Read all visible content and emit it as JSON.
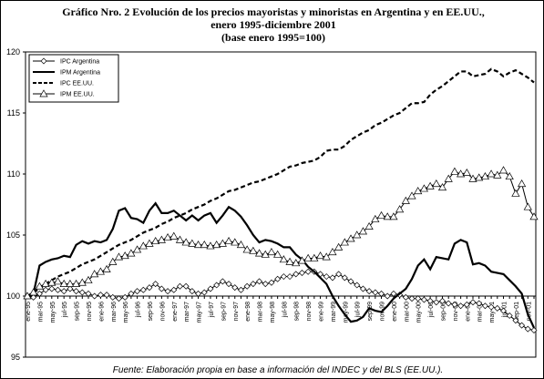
{
  "chart_data": {
    "type": "line",
    "title": [
      "Gráfico Nro. 2 Evolución de los precios mayoristas y minoristas en Argentina y en EE.UU.,",
      "enero 1995-diciembre 2001",
      "(base enero 1995=100)"
    ],
    "footnote": "Fuente: Elaboración propia en base a información del INDEC y del BLS (EE.UU.).",
    "categories": [
      "ene-95",
      null,
      "mar-95",
      null,
      "may-95",
      null,
      "jul-95",
      null,
      "sep-95",
      null,
      "nov-95",
      null,
      "ene-96",
      null,
      "mar-96",
      null,
      "may-96",
      null,
      "jul-96",
      null,
      "sep-96",
      null,
      "nov-96",
      null,
      "ene-97",
      null,
      "mar-97",
      null,
      "may-97",
      null,
      "jul-97",
      null,
      "sep-97",
      null,
      "nov-97",
      null,
      "ene-98",
      null,
      "mar-98",
      null,
      "may-98",
      null,
      "jul-98",
      null,
      "sep-98",
      null,
      "nov-98",
      null,
      "ene-99",
      null,
      "mar-99",
      null,
      "may-99",
      null,
      "jul-99",
      null,
      "sep-99",
      null,
      "nov-99",
      null,
      "ene-00",
      null,
      "mar-00",
      null,
      "may-00",
      null,
      "jul-00",
      null,
      "sep-00",
      null,
      "nov-00",
      null,
      "ene-01",
      null,
      "mar-01",
      null,
      "may-01",
      null,
      "jul-01",
      null,
      "sep-01",
      null,
      "nov-01",
      null
    ],
    "ylim": [
      95,
      120
    ],
    "yticks": [
      95,
      100,
      105,
      110,
      115,
      120
    ],
    "axis_crossing": 100,
    "legend": "upper left",
    "series": [
      {
        "name": "IPC Argentina",
        "color": "#000000",
        "dash": false,
        "marker": "diamond",
        "values": [
          100,
          99.9,
          100.2,
          100.5,
          100.6,
          100.5,
          100.4,
          100.6,
          100.4,
          100.3,
          100.2,
          100.0,
          100.1,
          100.1,
          99.9,
          99.8,
          99.9,
          100.2,
          100.4,
          100.5,
          100.7,
          101.0,
          100.6,
          100.4,
          100.5,
          100.8,
          100.8,
          100.4,
          100.2,
          100.3,
          100.6,
          100.9,
          101.2,
          101.0,
          100.7,
          100.5,
          100.8,
          101.0,
          101.2,
          101.0,
          101.1,
          101.4,
          101.6,
          101.6,
          101.8,
          101.9,
          102.0,
          102.0,
          101.8,
          101.6,
          101.5,
          101.8,
          101.5,
          101.2,
          100.9,
          100.6,
          100.4,
          100.3,
          100.2,
          100.0,
          100.2,
          100.1,
          99.9,
          99.8,
          99.8,
          99.7,
          99.6,
          99.5,
          99.6,
          99.4,
          99.3,
          99.2,
          99.3,
          99.5,
          99.4,
          99.2,
          99.1,
          99.0,
          98.8,
          98.4,
          98.0,
          97.6,
          97.3,
          97.2
        ]
      },
      {
        "name": "IPM Argentina",
        "color": "#000000",
        "dash": false,
        "marker": null,
        "values": [
          100,
          100.2,
          102.5,
          102.8,
          103.0,
          103.1,
          103.3,
          103.2,
          104.2,
          104.5,
          104.3,
          104.5,
          104.4,
          104.6,
          105.5,
          107.0,
          107.2,
          106.4,
          106.3,
          106.0,
          107.0,
          107.6,
          106.8,
          106.8,
          107.0,
          106.6,
          106.2,
          106.6,
          106.2,
          106.6,
          106.8,
          106.0,
          106.6,
          107.3,
          107.0,
          106.5,
          105.8,
          105.0,
          104.4,
          104.6,
          104.5,
          104.3,
          104.0,
          104.0,
          103.4,
          103.0,
          102.4,
          102.0,
          101.5,
          101.0,
          100.0,
          99.2,
          98.5,
          97.9,
          98.0,
          98.3,
          99.0,
          98.8,
          98.7,
          99.2,
          99.8,
          100.2,
          100.6,
          101.4,
          102.5,
          103.0,
          102.2,
          103.2,
          103.1,
          103.0,
          104.3,
          104.6,
          104.4,
          102.6,
          102.7,
          102.5,
          102.0,
          101.9,
          101.8,
          101.3,
          100.8,
          100.2,
          98.5,
          97.4
        ]
      },
      {
        "name": "IPC EE.UU.",
        "color": "#000000",
        "dash": true,
        "marker": null,
        "values": [
          100,
          100.3,
          100.6,
          101.0,
          101.3,
          101.6,
          101.8,
          102.0,
          102.3,
          102.6,
          102.8,
          103.0,
          103.3,
          103.6,
          103.9,
          104.2,
          104.4,
          104.6,
          104.9,
          105.2,
          105.4,
          105.6,
          105.9,
          106.1,
          106.4,
          106.6,
          106.8,
          107.1,
          107.3,
          107.5,
          107.8,
          108.0,
          108.3,
          108.6,
          108.7,
          108.9,
          109.1,
          109.3,
          109.4,
          109.6,
          109.8,
          110.0,
          110.3,
          110.6,
          110.7,
          110.9,
          111.0,
          111.1,
          111.4,
          111.9,
          112.0,
          112.0,
          112.3,
          112.8,
          113.1,
          113.4,
          113.6,
          114.0,
          114.2,
          114.5,
          114.8,
          115.0,
          115.4,
          115.8,
          115.8,
          115.9,
          116.5,
          116.9,
          117.2,
          117.6,
          118.0,
          118.4,
          118.4,
          118.0,
          118.1,
          118.2,
          118.6,
          118.4,
          118.0,
          118.3,
          118.5,
          118.2,
          117.9,
          117.5
        ]
      },
      {
        "name": "IPM EE.UU.",
        "color": "#000000",
        "dash": false,
        "marker": "triangle",
        "values": [
          100,
          100.3,
          100.8,
          101.0,
          101.1,
          101.2,
          101.0,
          101.0,
          101.0,
          101.1,
          101.3,
          101.8,
          102.0,
          102.2,
          102.8,
          103.2,
          103.3,
          103.5,
          103.8,
          104.1,
          104.3,
          104.5,
          104.6,
          104.8,
          104.9,
          104.6,
          104.4,
          104.3,
          104.2,
          104.2,
          104.1,
          104.2,
          104.3,
          104.5,
          104.4,
          104.2,
          103.8,
          103.7,
          103.5,
          103.4,
          103.6,
          103.4,
          103.0,
          102.8,
          102.7,
          102.9,
          103.1,
          103.1,
          103.3,
          103.2,
          103.6,
          104.0,
          104.4,
          104.7,
          105.0,
          105.3,
          105.7,
          106.3,
          106.6,
          106.5,
          106.5,
          107.1,
          107.8,
          108.2,
          108.6,
          108.8,
          109.0,
          109.2,
          108.9,
          109.6,
          110.2,
          110.0,
          110.1,
          109.6,
          109.7,
          109.8,
          110.0,
          109.9,
          110.3,
          109.8,
          108.4,
          109.2,
          107.3,
          106.5
        ]
      }
    ]
  }
}
